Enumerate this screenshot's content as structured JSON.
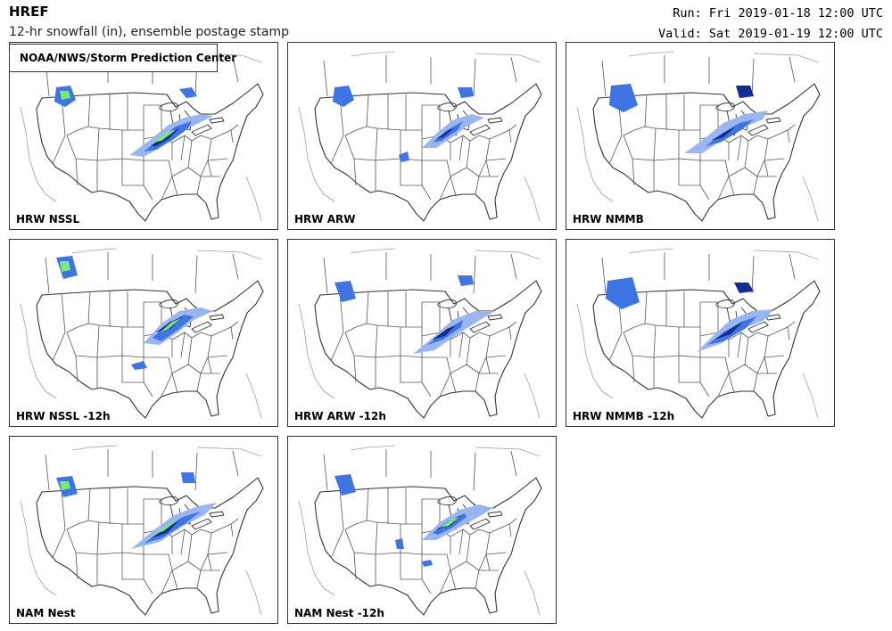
{
  "header": {
    "title": "HREF",
    "subtitle": "12-hr snowfall (in), ensemble postage stamp",
    "run": "Run: Fri 2019-01-18 12:00 UTC",
    "valid": "Valid: Sat 2019-01-19 12:00 UTC"
  },
  "badge": {
    "text": "NOAA/NWS/Storm Prediction Center",
    "logo": "noaa-logo"
  },
  "colors": {
    "snow_light": "#9ab6f2",
    "snow_mid": "#3f74e4",
    "snow_dark": "#152c92",
    "snow_heavy": "#7ae87e",
    "border": "#333333",
    "coast": "#9a9a9a"
  },
  "panels": [
    {
      "label": "HRW NSSL"
    },
    {
      "label": "HRW ARW"
    },
    {
      "label": "HRW NMMB"
    },
    {
      "label": "HRW NSSL -12h"
    },
    {
      "label": "HRW ARW -12h"
    },
    {
      "label": "HRW NMMB -12h"
    },
    {
      "label": "NAM Nest"
    },
    {
      "label": "NAM Nest -12h"
    }
  ]
}
